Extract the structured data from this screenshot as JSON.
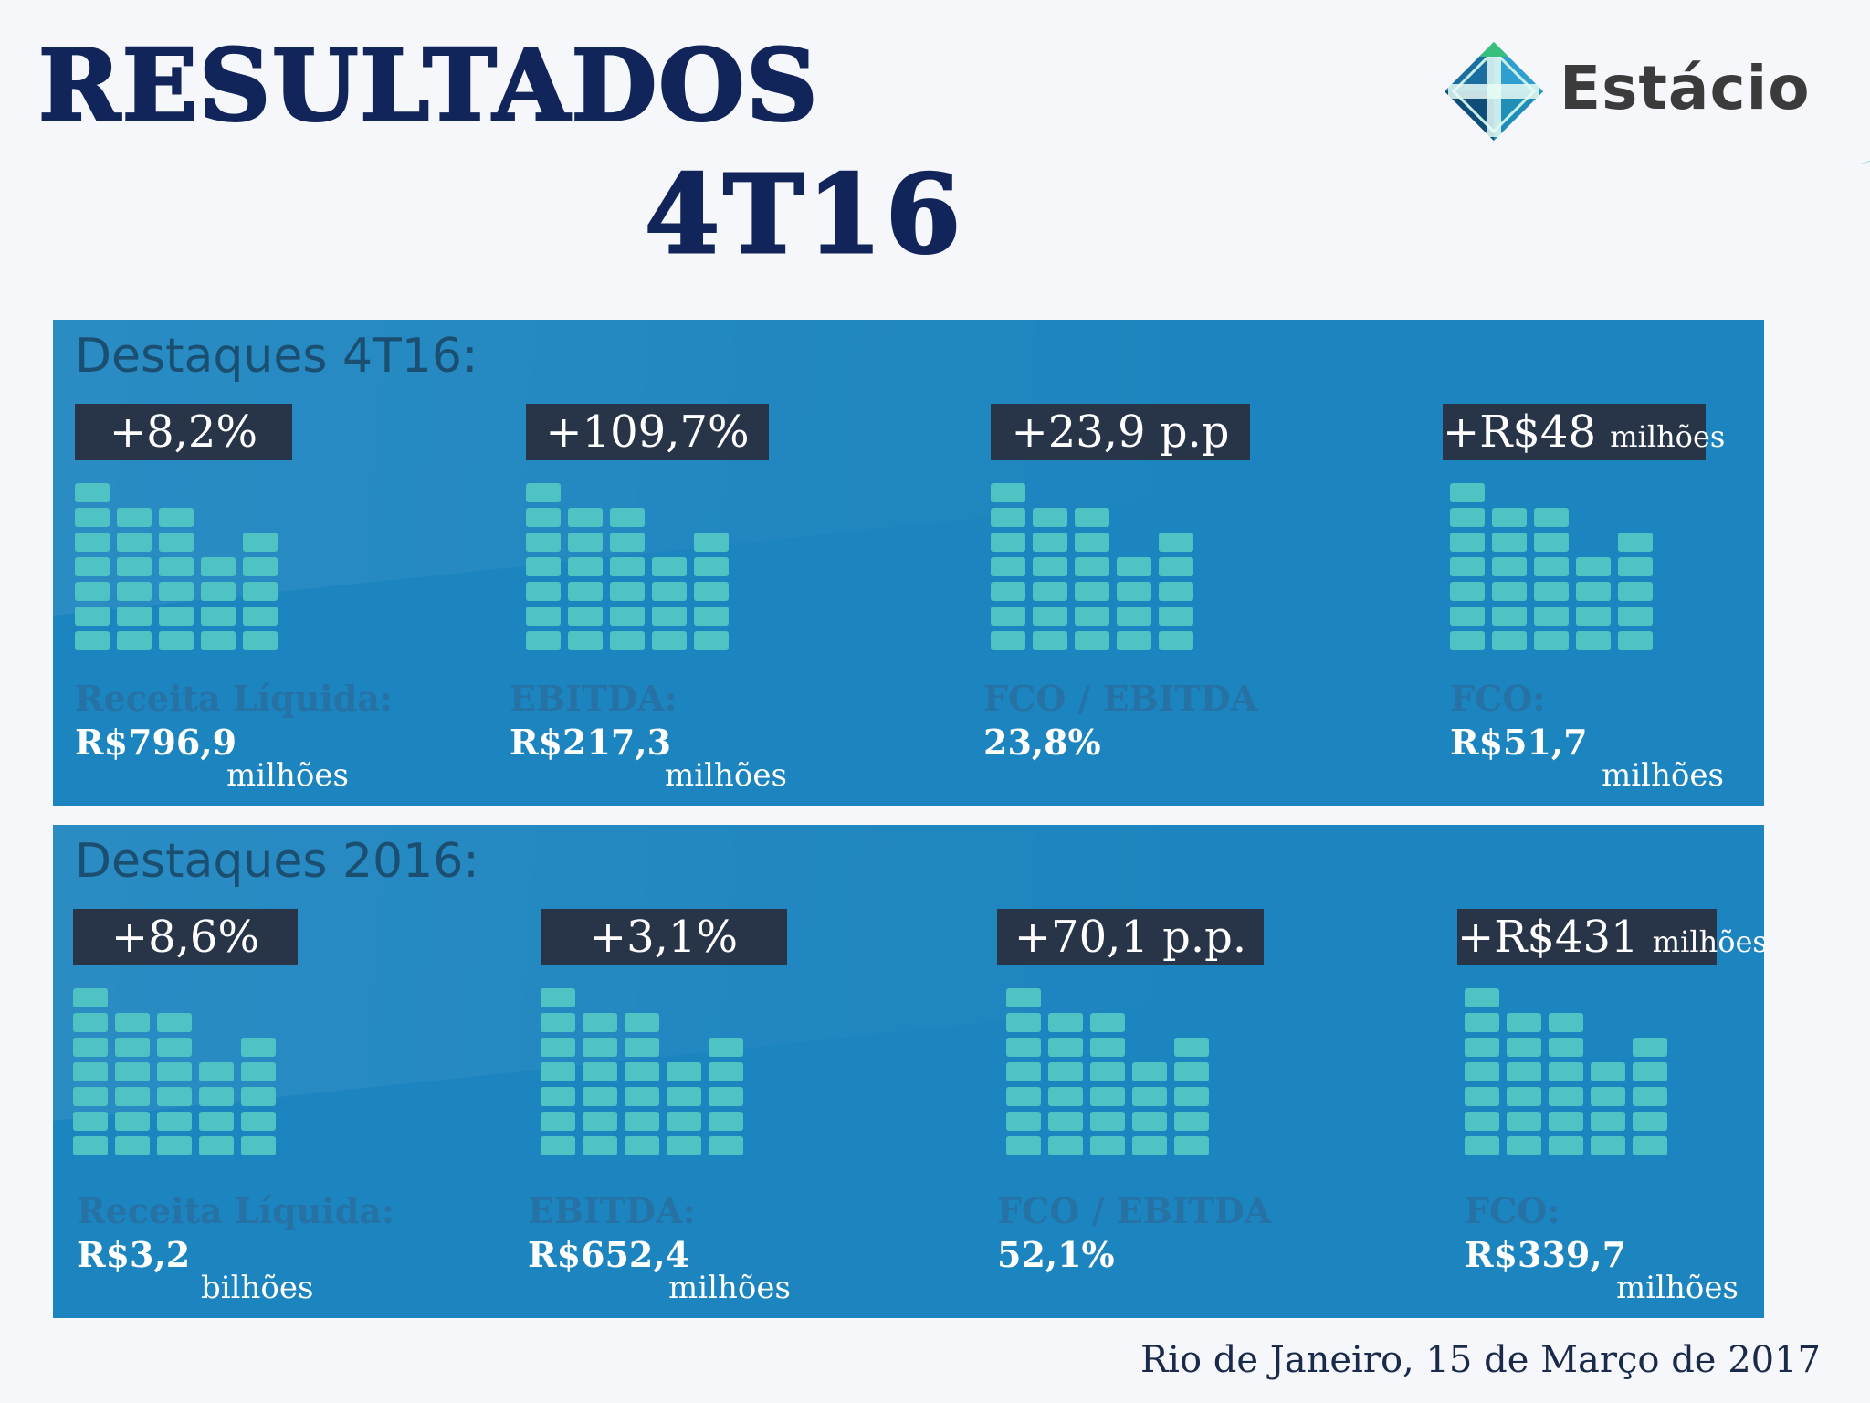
{
  "header": {
    "title": "RESULTADOS",
    "subtitle": "4T16",
    "logo_text": "Estácio"
  },
  "panels": [
    {
      "title": "Destaques 4T16:",
      "cards": [
        {
          "badge": "+8,2%",
          "badge_unit": "",
          "label": "Receita Líquida:",
          "value": "R$796,9",
          "unit": "milhões"
        },
        {
          "badge": "+109,7%",
          "badge_unit": "",
          "label": "EBITDA:",
          "value": "R$217,3",
          "unit": "milhões"
        },
        {
          "badge": "+23,9 p.p",
          "badge_unit": "",
          "label": "FCO / EBITDA",
          "value": "23,8%",
          "unit": ""
        },
        {
          "badge": "+R$48",
          "badge_unit": "milhões",
          "label": "FCO:",
          "value": "R$51,7",
          "unit": "milhões"
        }
      ]
    },
    {
      "title": "Destaques 2016:",
      "cards": [
        {
          "badge": "+8,6%",
          "badge_unit": "",
          "label": "Receita Líquida:",
          "value": "R$3,2",
          "unit": "bilhões"
        },
        {
          "badge": "+3,1%",
          "badge_unit": "",
          "label": "EBITDA:",
          "value": "R$652,4",
          "unit": "milhões"
        },
        {
          "badge": "+70,1 p.p.",
          "badge_unit": "",
          "label": "FCO / EBITDA",
          "value": "52,1%",
          "unit": ""
        },
        {
          "badge": "+R$431",
          "badge_unit": "milhões",
          "label": "FCO:",
          "value": "R$339,7",
          "unit": "milhões"
        }
      ]
    }
  ],
  "footer": {
    "text": "Rio de Janeiro, 15 de Março de 2017"
  },
  "colors": {
    "title": "#12255a",
    "panel": "#1c84bf",
    "badge": "#283549",
    "bars": "#4fc3c3"
  },
  "icons": {
    "logo": "estacio-diamond-logo-icon",
    "bars": "bar-chart-icon"
  }
}
